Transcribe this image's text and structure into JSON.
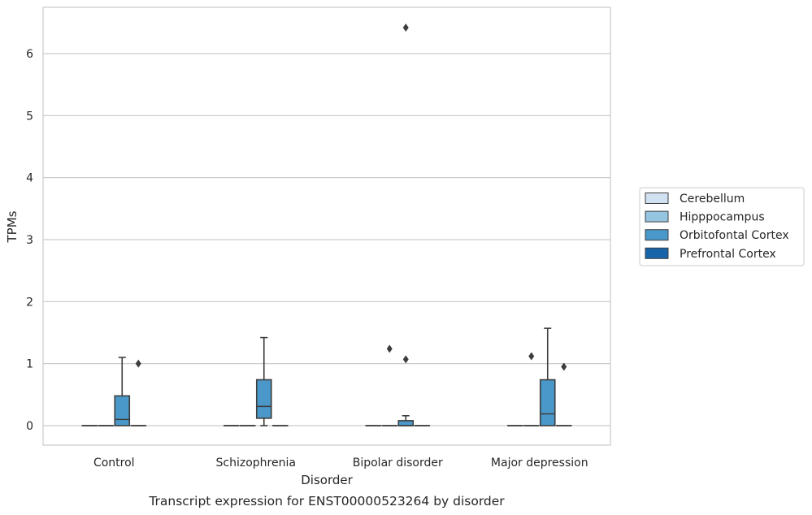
{
  "chart_data": {
    "type": "box",
    "title": "",
    "caption": "Transcript expression for ENST00000523264 by disorder",
    "xlabel": "Disorder",
    "ylabel": "TPMs",
    "categories": [
      "Control",
      "Schizophrenia",
      "Bipolar disorder",
      "Major depression"
    ],
    "ylim": [
      -0.3,
      6.75
    ],
    "yticks": [
      0,
      1,
      2,
      3,
      4,
      5,
      6
    ],
    "grid": true,
    "legend_position": "right",
    "series": [
      {
        "name": "Cerebellum",
        "color": "#d0e1f2",
        "boxes": [
          {
            "q1": 0,
            "median": 0,
            "q3": 0,
            "whislo": 0,
            "whishi": 0,
            "fliers": []
          },
          {
            "q1": 0,
            "median": 0,
            "q3": 0,
            "whislo": 0,
            "whishi": 0,
            "fliers": []
          },
          {
            "q1": 0,
            "median": 0,
            "q3": 0,
            "whislo": 0,
            "whishi": 0,
            "fliers": []
          },
          {
            "q1": 0,
            "median": 0,
            "q3": 0,
            "whislo": 0,
            "whishi": 0,
            "fliers": []
          }
        ]
      },
      {
        "name": "Hipppocampus",
        "color": "#94c4df",
        "boxes": [
          {
            "q1": 0,
            "median": 0,
            "q3": 0,
            "whislo": 0,
            "whishi": 0,
            "fliers": []
          },
          {
            "q1": 0,
            "median": 0,
            "q3": 0,
            "whislo": 0,
            "whishi": 0,
            "fliers": []
          },
          {
            "q1": 0,
            "median": 0,
            "q3": 0,
            "whislo": 0,
            "whishi": 0,
            "fliers": [
              1.24
            ]
          },
          {
            "q1": 0,
            "median": 0,
            "q3": 0,
            "whislo": 0,
            "whishi": 0,
            "fliers": [
              1.12
            ]
          }
        ]
      },
      {
        "name": "Orbitofontal Cortex",
        "color": "#4a98c9",
        "boxes": [
          {
            "q1": 0,
            "median": 0.1,
            "q3": 0.48,
            "whislo": 0,
            "whishi": 1.1,
            "fliers": []
          },
          {
            "q1": 0.12,
            "median": 0.31,
            "q3": 0.74,
            "whislo": 0,
            "whishi": 1.42,
            "fliers": []
          },
          {
            "q1": 0,
            "median": 0,
            "q3": 0.08,
            "whislo": 0,
            "whishi": 0.16,
            "fliers": [
              1.07,
              6.42
            ]
          },
          {
            "q1": 0,
            "median": 0.19,
            "q3": 0.74,
            "whislo": 0,
            "whishi": 1.57,
            "fliers": []
          }
        ]
      },
      {
        "name": "Prefrontal Cortex",
        "color": "#1764ab",
        "boxes": [
          {
            "q1": 0,
            "median": 0,
            "q3": 0,
            "whislo": 0,
            "whishi": 0,
            "fliers": [
              1.0
            ]
          },
          {
            "q1": 0,
            "median": 0,
            "q3": 0,
            "whislo": 0,
            "whishi": 0,
            "fliers": []
          },
          {
            "q1": 0,
            "median": 0,
            "q3": 0,
            "whislo": 0,
            "whishi": 0,
            "fliers": []
          },
          {
            "q1": 0,
            "median": 0,
            "q3": 0,
            "whislo": 0,
            "whishi": 0,
            "fliers": [
              0.95
            ]
          }
        ]
      }
    ]
  }
}
